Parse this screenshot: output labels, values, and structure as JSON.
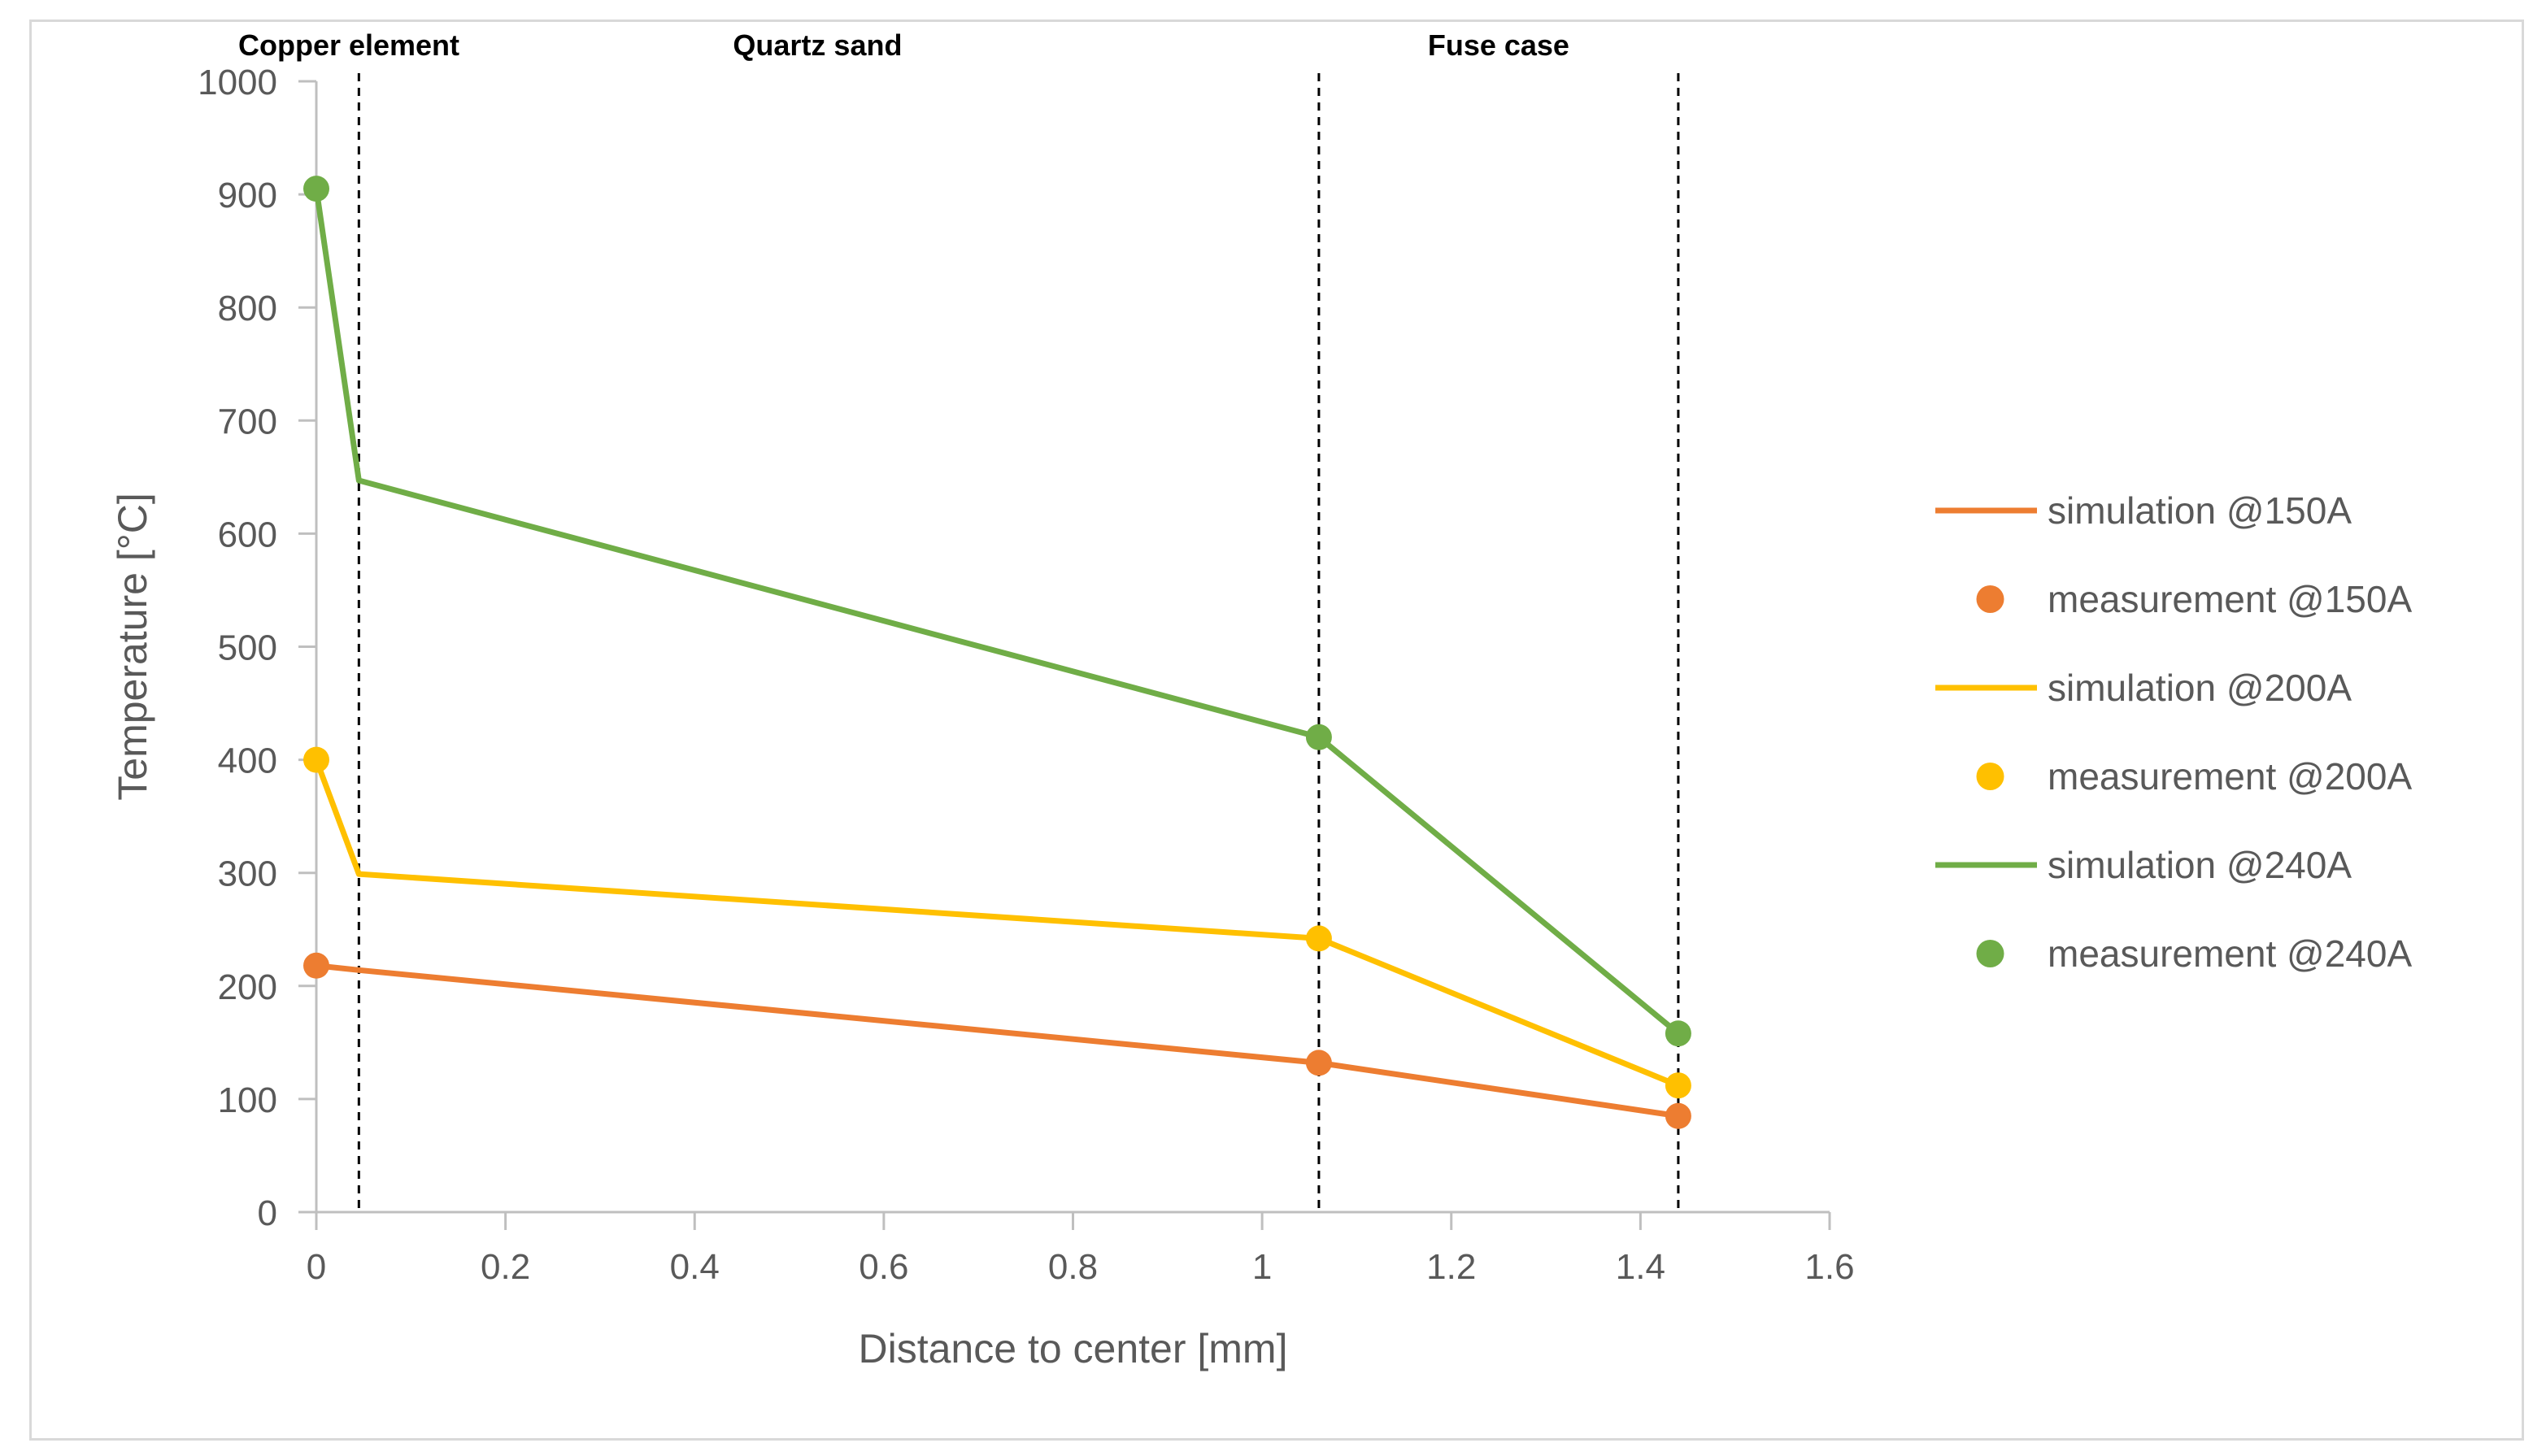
{
  "chart_data": {
    "type": "line",
    "title": "",
    "xlabel": "Distance to center [mm]",
    "ylabel": "Temperature [°C]",
    "xlim": [
      0,
      1.6
    ],
    "ylim": [
      0,
      1000
    ],
    "x_ticks": [
      "0",
      "0.2",
      "0.4",
      "0.6",
      "0.8",
      "1",
      "1.2",
      "1.4",
      "1.6"
    ],
    "y_ticks": [
      "0",
      "100",
      "200",
      "300",
      "400",
      "500",
      "600",
      "700",
      "800",
      "900",
      "1000"
    ],
    "grid": false,
    "legend_position": "right",
    "region_boundaries": [
      0.045,
      1.06,
      1.44
    ],
    "regions": [
      {
        "label": "Copper element",
        "x": 0.0
      },
      {
        "label": "Quartz sand",
        "x": 0.53
      },
      {
        "label": "Fuse case",
        "x": 1.25
      }
    ],
    "series": [
      {
        "name": "simulation @150A",
        "kind": "line",
        "color": "#ED7D31",
        "x": [
          0,
          0.045,
          1.06,
          1.44
        ],
        "y": [
          218,
          214,
          132,
          85
        ]
      },
      {
        "name": "measurement @150A",
        "kind": "marker",
        "color": "#ED7D31",
        "x": [
          0,
          1.06,
          1.44
        ],
        "y": [
          218,
          132,
          85
        ]
      },
      {
        "name": "simulation @200A",
        "kind": "line",
        "color": "#FFC000",
        "x": [
          0,
          0.045,
          1.06,
          1.44
        ],
        "y": [
          400,
          299,
          242,
          112
        ]
      },
      {
        "name": "measurement @200A",
        "kind": "marker",
        "color": "#FFC000",
        "x": [
          0,
          1.06,
          1.44
        ],
        "y": [
          400,
          242,
          112
        ]
      },
      {
        "name": "simulation @240A",
        "kind": "line",
        "color": "#70AD47",
        "x": [
          0,
          0.045,
          1.06,
          1.44
        ],
        "y": [
          905,
          647,
          420,
          158
        ]
      },
      {
        "name": "measurement @240A",
        "kind": "marker",
        "color": "#70AD47",
        "x": [
          0,
          1.06,
          1.44
        ],
        "y": [
          905,
          420,
          158
        ]
      }
    ]
  }
}
